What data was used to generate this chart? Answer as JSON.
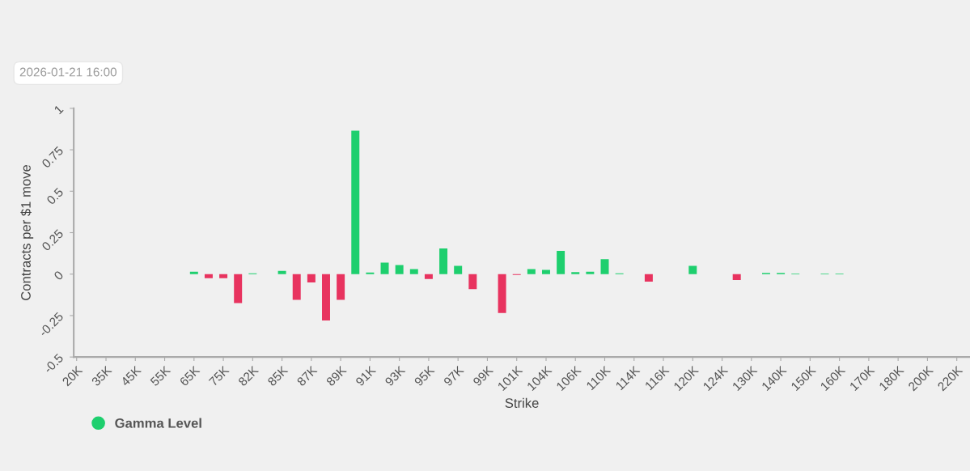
{
  "chart_data": {
    "type": "bar",
    "xlabel": "Strike",
    "ylabel": "Contracts per $1 move",
    "annotations": [
      "2026-01-21 16:00"
    ],
    "categories": [
      "20K",
      null,
      "35K",
      null,
      "45K",
      null,
      "55K",
      null,
      "65K",
      null,
      "75K",
      null,
      "82K",
      null,
      "85K",
      null,
      "87K",
      null,
      "89K",
      null,
      "91K",
      null,
      "93K",
      null,
      "95K",
      null,
      "97K",
      null,
      "99K",
      null,
      "101K",
      null,
      "104K",
      null,
      "106K",
      null,
      "110K",
      null,
      "114K",
      null,
      "116K",
      null,
      "120K",
      null,
      "124K",
      null,
      "130K",
      null,
      "140K",
      null,
      "150K",
      null,
      "160K",
      null,
      "170K",
      null,
      "180K",
      null,
      "200K",
      null,
      "220K"
    ],
    "series": [
      {
        "name": "Gamma Level",
        "color": "#1ecf6e",
        "values": [
          null,
          null,
          null,
          null,
          null,
          null,
          null,
          null,
          0.015,
          -0.025,
          -0.025,
          -0.175,
          0.005,
          null,
          0.02,
          -0.155,
          -0.05,
          -0.28,
          -0.155,
          0.865,
          0.01,
          0.07,
          0.055,
          0.03,
          -0.03,
          0.155,
          0.05,
          -0.09,
          null,
          -0.235,
          -0.005,
          0.03,
          0.025,
          0.14,
          0.012,
          0.015,
          0.09,
          0.005,
          null,
          -0.045,
          null,
          null,
          0.05,
          null,
          null,
          -0.035,
          null,
          0.007,
          0.007,
          0.004,
          null,
          0.004,
          0.004,
          null,
          null,
          null,
          null,
          null,
          null,
          null,
          null
        ],
        "colors": [
          null,
          null,
          null,
          null,
          null,
          null,
          null,
          null,
          "#1ecf6e",
          "#e8335f",
          "#e8335f",
          "#e8335f",
          "#1ecf6e",
          null,
          "#1ecf6e",
          "#e8335f",
          "#e8335f",
          "#e8335f",
          "#e8335f",
          "#1ecf6e",
          "#1ecf6e",
          "#1ecf6e",
          "#1ecf6e",
          "#1ecf6e",
          "#e8335f",
          "#1ecf6e",
          "#1ecf6e",
          "#e8335f",
          null,
          "#e8335f",
          "#e8335f",
          "#1ecf6e",
          "#1ecf6e",
          "#1ecf6e",
          "#1ecf6e",
          "#1ecf6e",
          "#1ecf6e",
          "#1ecf6e",
          null,
          "#e8335f",
          null,
          null,
          "#1ecf6e",
          null,
          null,
          "#e8335f",
          null,
          "#1ecf6e",
          "#1ecf6e",
          "#1ecf6e",
          null,
          "#1ecf6e",
          "#1ecf6e",
          null,
          null,
          null,
          null,
          null,
          null,
          null,
          null
        ]
      }
    ],
    "ylim": [
      -0.5,
      1
    ],
    "yticks": [
      -0.5,
      -0.25,
      0,
      0.25,
      0.5,
      0.75,
      1
    ],
    "grid": false,
    "legend": "bottom left"
  }
}
